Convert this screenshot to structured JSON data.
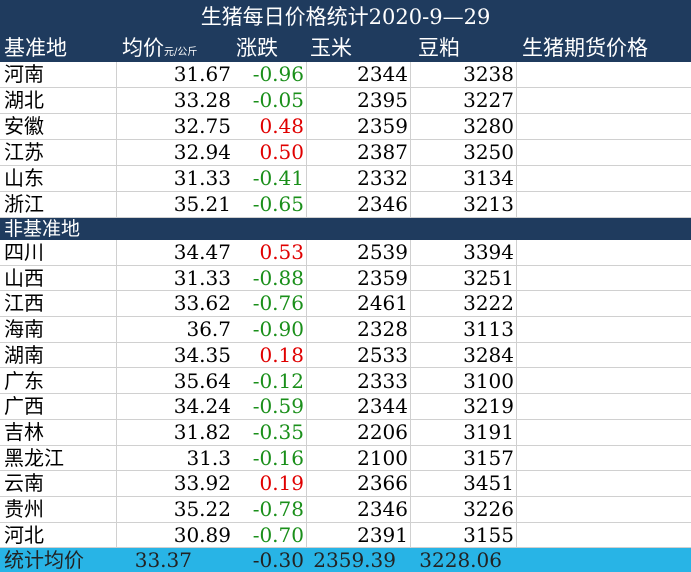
{
  "title": "生猪每日价格统计2020-9—29",
  "headers": {
    "region": "基准地",
    "avg": "均价",
    "avg_unit": "元/公斤",
    "change": "涨跌",
    "corn": "玉米",
    "soy": "豆粕",
    "futures": "生猪期货价格"
  },
  "section_nonbase": "非基准地",
  "base_rows": [
    {
      "region": "河南",
      "avg": "31.67",
      "change": "-0.96",
      "corn": "2344",
      "soy": "3238"
    },
    {
      "region": "湖北",
      "avg": "33.28",
      "change": "-0.05",
      "corn": "2395",
      "soy": "3227"
    },
    {
      "region": "安徽",
      "avg": "32.75",
      "change": "0.48",
      "corn": "2359",
      "soy": "3280"
    },
    {
      "region": "江苏",
      "avg": "32.94",
      "change": "0.50",
      "corn": "2387",
      "soy": "3250"
    },
    {
      "region": "山东",
      "avg": "31.33",
      "change": "-0.41",
      "corn": "2332",
      "soy": "3134"
    },
    {
      "region": "浙江",
      "avg": "35.21",
      "change": "-0.65",
      "corn": "2346",
      "soy": "3213"
    }
  ],
  "nonbase_rows": [
    {
      "region": "四川",
      "avg": "34.47",
      "change": "0.53",
      "corn": "2539",
      "soy": "3394"
    },
    {
      "region": "山西",
      "avg": "31.33",
      "change": "-0.88",
      "corn": "2359",
      "soy": "3251"
    },
    {
      "region": "江西",
      "avg": "33.62",
      "change": "-0.76",
      "corn": "2461",
      "soy": "3222"
    },
    {
      "region": "海南",
      "avg": "36.7",
      "change": "-0.90",
      "corn": "2328",
      "soy": "3113"
    },
    {
      "region": "湖南",
      "avg": "34.35",
      "change": "0.18",
      "corn": "2533",
      "soy": "3284"
    },
    {
      "region": "广东",
      "avg": "35.64",
      "change": "-0.12",
      "corn": "2333",
      "soy": "3100"
    },
    {
      "region": "广西",
      "avg": "34.24",
      "change": "-0.59",
      "corn": "2344",
      "soy": "3219"
    },
    {
      "region": "吉林",
      "avg": "31.82",
      "change": "-0.35",
      "corn": "2206",
      "soy": "3191"
    },
    {
      "region": "黑龙江",
      "avg": "31.3",
      "change": "-0.16",
      "corn": "2100",
      "soy": "3157"
    },
    {
      "region": "云南",
      "avg": "33.92",
      "change": "0.19",
      "corn": "2366",
      "soy": "3451"
    },
    {
      "region": "贵州",
      "avg": "35.22",
      "change": "-0.78",
      "corn": "2346",
      "soy": "3226"
    },
    {
      "region": "河北",
      "avg": "30.89",
      "change": "-0.70",
      "corn": "2391",
      "soy": "3155"
    }
  ],
  "footer": {
    "label": "统计均价",
    "avg": "33.37",
    "change": "-0.30",
    "corn": "2359.39",
    "soy": "3228.06"
  },
  "colors": {
    "header_bg": "#1f3b5e",
    "footer_bg": "#28b4e6",
    "up": "#e00000",
    "down": "#1a8f1a"
  }
}
